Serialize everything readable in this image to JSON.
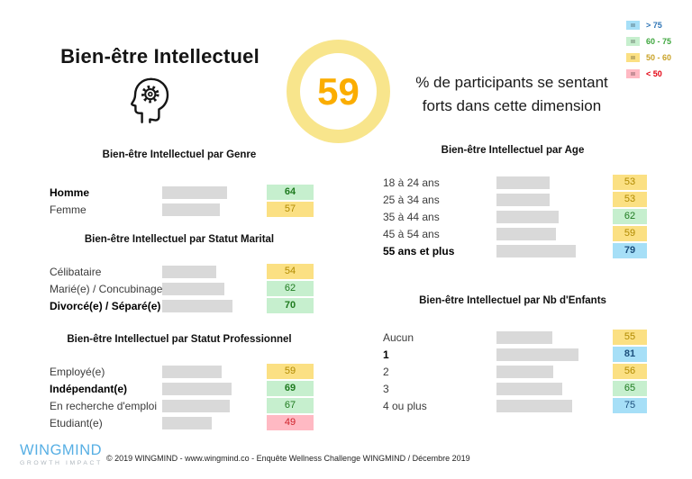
{
  "header": {
    "title": "Bien-être Intellectuel",
    "score": "59",
    "description_line1": "% de participants se sentant",
    "description_line2": "forts dans cette dimension"
  },
  "legend": {
    "items": [
      {
        "label": "> 75",
        "swatch": "#A6DFF7",
        "text_color": "#2E74B5"
      },
      {
        "label": "60 - 75",
        "swatch": "#C6EFCE",
        "text_color": "#3DA63D"
      },
      {
        "label": "50 - 60",
        "swatch": "#FBE083",
        "text_color": "#C9A227"
      },
      {
        "label": "< 50",
        "swatch": "#FFB9C3",
        "text_color": "#E3000F"
      }
    ]
  },
  "colors": {
    "ring": "#F8E58C",
    "score_text": "#FBAD00",
    "bar": "#D9D9D9",
    "cell_high_bg": "#A6DFF7",
    "cell_high_text": "#1C4F7C",
    "cell_good_bg": "#C6EFCE",
    "cell_good_text": "#1F7A1F",
    "cell_mid_bg": "#FBE083",
    "cell_mid_text": "#B08A00",
    "cell_low_bg": "#FFB9C3",
    "cell_low_text": "#CE2029"
  },
  "chart_data": [
    {
      "type": "bar",
      "orientation": "horizontal",
      "xlim": [
        0,
        100
      ],
      "title": "Bien-être Intellectuel par Genre",
      "categories": [
        "Homme",
        "Femme"
      ],
      "values": [
        64,
        57
      ],
      "bold": [
        true,
        false
      ]
    },
    {
      "type": "bar",
      "orientation": "horizontal",
      "xlim": [
        0,
        100
      ],
      "title": "Bien-être Intellectuel par Statut Marital",
      "categories": [
        "Célibataire",
        "Marié(e) / Concubinage",
        "Divorcé(e) / Séparé(e)"
      ],
      "values": [
        54,
        62,
        70
      ],
      "bold": [
        false,
        false,
        true
      ]
    },
    {
      "type": "bar",
      "orientation": "horizontal",
      "xlim": [
        0,
        100
      ],
      "title": "Bien-être Intellectuel par Statut Professionnel",
      "categories": [
        "Employé(e)",
        "Indépendant(e)",
        "En recherche d'emploi",
        "Etudiant(e)"
      ],
      "values": [
        59,
        69,
        67,
        49
      ],
      "bold": [
        false,
        true,
        false,
        false
      ]
    },
    {
      "type": "bar",
      "orientation": "horizontal",
      "xlim": [
        0,
        100
      ],
      "title": "Bien-être Intellectuel par Age",
      "categories": [
        "18 à 24 ans",
        "25 à 34 ans",
        "35 à 44 ans",
        "45 à 54 ans",
        "55 ans et plus"
      ],
      "values": [
        53,
        53,
        62,
        59,
        79
      ],
      "bold": [
        false,
        false,
        false,
        false,
        true
      ]
    },
    {
      "type": "bar",
      "orientation": "horizontal",
      "xlim": [
        0,
        100
      ],
      "title": "Bien-être Intellectuel par Nb d'Enfants",
      "categories": [
        "Aucun",
        "1",
        "2",
        "3",
        "4 ou plus"
      ],
      "values": [
        55,
        81,
        56,
        65,
        75
      ],
      "bold": [
        false,
        true,
        false,
        false,
        false
      ]
    }
  ],
  "footer": {
    "logo_title": "WINGMIND",
    "logo_subtitle": "GROWTH IMPACT",
    "copyright": "© 2019 WINGMIND - www.wingmind.co - Enquête Wellness Challenge WINGMIND / Décembre 2019"
  }
}
